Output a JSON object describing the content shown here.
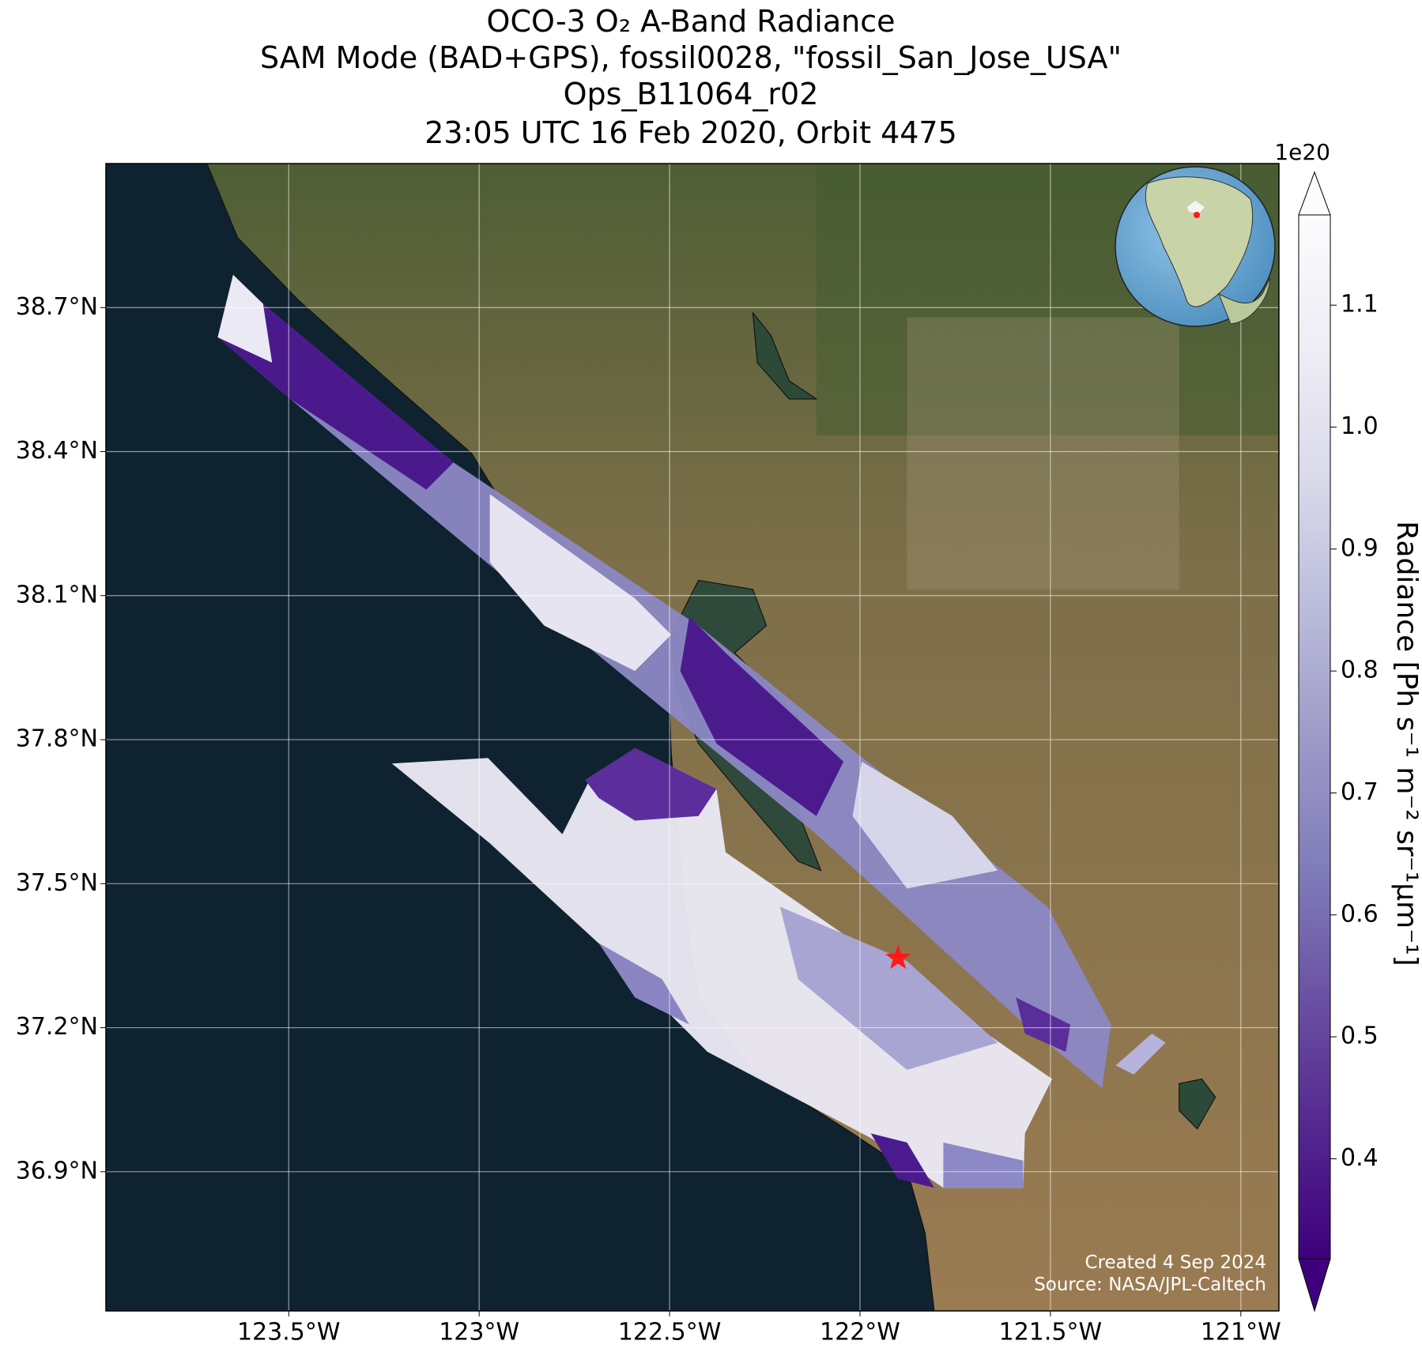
{
  "map": {
    "title": [
      "OCO-3 O₂ A-Band Radiance",
      "SAM Mode (BAD+GPS), fossil0028, \"fossil_San_Jose_USA\"",
      "Ops_B11064_r02",
      "23:05 UTC 16 Feb 2020, Orbit 4475"
    ],
    "xlim": [
      -123.98,
      -120.9
    ],
    "ylim": [
      36.61,
      39.0
    ],
    "xticks": [
      {
        "value": -123.5,
        "label": "123.5°W"
      },
      {
        "value": -123,
        "label": "123°W"
      },
      {
        "value": -122.5,
        "label": "122.5°W"
      },
      {
        "value": -122,
        "label": "122°W"
      },
      {
        "value": -121.5,
        "label": "121.5°W"
      },
      {
        "value": -121,
        "label": "121°W"
      }
    ],
    "yticks": [
      {
        "value": 38.7,
        "label": "38.7°N"
      },
      {
        "value": 38.4,
        "label": "38.4°N"
      },
      {
        "value": 38.1,
        "label": "38.1°N"
      },
      {
        "value": 37.8,
        "label": "37.8°N"
      },
      {
        "value": 37.5,
        "label": "37.5°N"
      },
      {
        "value": 37.2,
        "label": "37.2°N"
      },
      {
        "value": 36.9,
        "label": "36.9°N"
      }
    ],
    "grid": true,
    "target": {
      "lon": -121.9,
      "lat": 37.345,
      "color": "#ff1a1a"
    },
    "credits": [
      "Created 4 Sep 2024",
      "Source: NASA/JPL-Caltech"
    ],
    "colorbar": {
      "label": "Radiance [Ph s⁻¹ m⁻² sr⁻¹μm⁻¹]",
      "exponent": "1e20",
      "lim": [
        0.318,
        1.174
      ],
      "ticks": [
        0.4,
        0.5,
        0.6,
        0.7,
        0.8,
        0.9,
        {
          "value": 1,
          "label": "1.0"
        },
        1.1
      ],
      "colors": [
        "#3f007d",
        "#54278f",
        "#6a51a3",
        "#807dba",
        "#9e9ac8",
        "#bcbddc",
        "#dadaeb",
        "#efedf5",
        "#fcfbfd"
      ]
    }
  }
}
